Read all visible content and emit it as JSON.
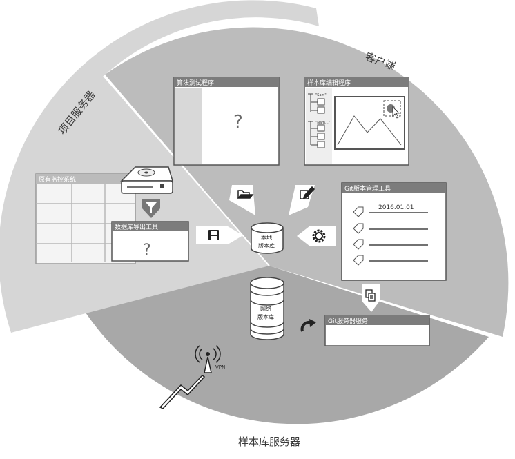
{
  "sectors": {
    "client": "客户端",
    "project_server": "项目服务器",
    "sample_server": "样本库服务器"
  },
  "windows": {
    "algorithm_test": {
      "title": "算法测试程序",
      "placeholder": "?"
    },
    "sample_editor": {
      "title": "样本库编辑程序",
      "tree_labels": [
        "\"Sam\"",
        "\"Nam...\""
      ]
    },
    "git_manager": {
      "title": "Git版本管理工具",
      "date": "2016.01.01"
    },
    "monitor_system": {
      "title": "原有监控系统"
    },
    "db_export": {
      "title": "数据库导出工具",
      "placeholder": "?"
    },
    "git_service": {
      "title": "Git服务器服务"
    }
  },
  "databases": {
    "local": {
      "line1": "本地",
      "line2": "版本库"
    },
    "network": {
      "line1": "网络",
      "line2": "版本库"
    }
  },
  "vpn": {
    "label": "VPN"
  },
  "icons": [
    "folder-open-icon",
    "edit-icon",
    "save-icon",
    "gear-icon",
    "copy-icon",
    "filter-icon",
    "refresh-icon",
    "wifi-antenna-icon",
    "lightning-icon",
    "server-icon",
    "tag-icon"
  ],
  "colors": {
    "sample_sector": "#a8a8a8",
    "client_sector": "#bcbcbc",
    "project_sector": "#d6d6d6",
    "window_title": "#7c7c7c",
    "window_body": "#ffffff"
  }
}
